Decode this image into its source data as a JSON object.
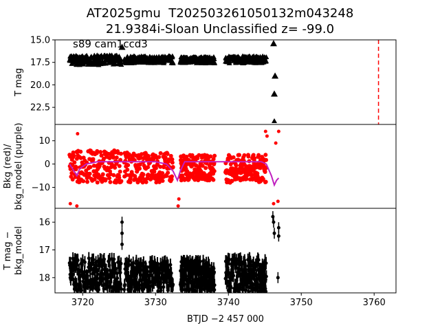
{
  "figure": {
    "title_line1": "AT2025gmu  T202503261050132m043248",
    "title_line2": "21.9384i-Sloan Unclassified z= -99.0"
  },
  "chart_data": [
    {
      "panel": "top",
      "type": "scatter",
      "annotation": "s89 cam1ccd3",
      "ylabel": "T mag",
      "yticks": [
        "15.0",
        "17.5",
        "20.0",
        "22.5"
      ],
      "ylim": [
        15.0,
        24.4
      ],
      "y_inverted": true,
      "xlim": [
        3716.2,
        3763.0
      ],
      "marker": "triangle",
      "series": [
        {
          "color": "#000000",
          "segments": [
            {
              "x_start": 3718.2,
              "x_end": 3725.3,
              "y_low": 16.7,
              "y_high": 17.8
            },
            {
              "x_start": 3725.7,
              "x_end": 3732.4,
              "y_low": 16.8,
              "y_high": 17.6
            },
            {
              "x_start": 3733.4,
              "x_end": 3738.1,
              "y_low": 16.9,
              "y_high": 17.6
            },
            {
              "x_start": 3739.6,
              "x_end": 3745.2,
              "y_low": 16.8,
              "y_high": 17.6
            }
          ],
          "spikes": [
            {
              "x": 3725.4,
              "y": 15.8
            },
            {
              "x": 3746.2,
              "y": 15.4
            },
            {
              "x": 3746.4,
              "y": 19.0
            },
            {
              "x": 3746.3,
              "y": 21.0
            }
          ]
        }
      ],
      "vline": {
        "x": 3760.6,
        "color": "#ff0000",
        "style": "dashed"
      },
      "off_scale_marker": {
        "x": 3746.3
      }
    },
    {
      "panel": "middle",
      "type": "scatter",
      "ylabel_line1": "Bkg (red)/",
      "ylabel_line2": "bkg_model (purple)",
      "yticks": [
        "10",
        "0",
        "−10"
      ],
      "ytick_values": [
        10,
        0,
        -10
      ],
      "ylim": [
        -19,
        17
      ],
      "xlim": [
        3716.2,
        3763.0
      ],
      "series": [
        {
          "name": "Bkg",
          "color": "#ff0000",
          "segments": [
            {
              "x_start": 3718.2,
              "x_end": 3725.3,
              "y_low": -8,
              "y_high": 6
            },
            {
              "x_start": 3725.7,
              "x_end": 3732.4,
              "y_low": -8,
              "y_high": 5
            },
            {
              "x_start": 3733.4,
              "x_end": 3738.1,
              "y_low": -7,
              "y_high": 4
            },
            {
              "x_start": 3739.6,
              "x_end": 3745.2,
              "y_low": -8,
              "y_high": 4
            }
          ],
          "extremes": [
            {
              "x": 3718.3,
              "y": -17
            },
            {
              "x": 3719.2,
              "y": -18
            },
            {
              "x": 3719.3,
              "y": 13
            },
            {
              "x": 3733.1,
              "y": -18
            },
            {
              "x": 3733.2,
              "y": -15
            },
            {
              "x": 3745.1,
              "y": 14
            },
            {
              "x": 3745.3,
              "y": 12
            },
            {
              "x": 3746.5,
              "y": 9
            },
            {
              "x": 3746.9,
              "y": 14
            },
            {
              "x": 3746.2,
              "y": -17
            },
            {
              "x": 3746.8,
              "y": -16
            }
          ]
        },
        {
          "name": "bkg_model",
          "color": "#c020c0",
          "x": [
            3718.2,
            3718.8,
            3719.2,
            3719.6,
            3720.5,
            3722.0,
            3724.0,
            3725.3,
            3725.7,
            3728.0,
            3730.0,
            3731.5,
            3732.4,
            3733.0,
            3733.4,
            3734.0,
            3736.0,
            3738.1,
            3739.6,
            3741.0,
            3743.0,
            3744.5,
            3745.2,
            3745.9,
            3746.3,
            3746.6,
            3746.9
          ],
          "y": [
            0,
            -3,
            -5,
            -2,
            0,
            1,
            1,
            1,
            1,
            1,
            1,
            0,
            -3,
            -7,
            -3,
            1,
            1,
            1,
            1,
            1,
            1,
            1,
            0,
            -5,
            -9,
            -7,
            -6
          ]
        }
      ]
    },
    {
      "panel": "bottom",
      "type": "scatter",
      "ylabel_line1": "T mag −",
      "ylabel_line2": "bkg_model",
      "yticks": [
        "16",
        "17",
        "18"
      ],
      "ytick_values": [
        16,
        17,
        18
      ],
      "ylim": [
        15.5,
        18.55
      ],
      "y_inverted": true,
      "xlim": [
        3716.2,
        3763.0
      ],
      "xlabel": "BTJD −2 457 000",
      "xticks": [
        "3720",
        "3730",
        "3740",
        "3750",
        "3760"
      ],
      "xtick_values": [
        3720,
        3730,
        3740,
        3750,
        3760
      ],
      "series": [
        {
          "color": "#000000",
          "segments": [
            {
              "x_start": 3718.2,
              "x_end": 3725.3,
              "y_low": 17.3,
              "y_high": 18.5
            },
            {
              "x_start": 3725.7,
              "x_end": 3732.4,
              "y_low": 17.4,
              "y_high": 18.5
            },
            {
              "x_start": 3733.4,
              "x_end": 3738.1,
              "y_low": 17.4,
              "y_high": 18.5
            },
            {
              "x_start": 3739.6,
              "x_end": 3745.2,
              "y_low": 17.3,
              "y_high": 18.5
            }
          ],
          "spikes": [
            {
              "x": 3725.4,
              "y": 16.0
            },
            {
              "x": 3725.4,
              "y": 16.4
            },
            {
              "x": 3725.4,
              "y": 16.8
            },
            {
              "x": 3746.1,
              "y": 15.8
            },
            {
              "x": 3746.2,
              "y": 16.0
            },
            {
              "x": 3746.3,
              "y": 16.4
            },
            {
              "x": 3746.9,
              "y": 16.2
            },
            {
              "x": 3746.9,
              "y": 16.5
            },
            {
              "x": 3746.8,
              "y": 18.0
            },
            {
              "x": 3718.3,
              "y": 18.0
            }
          ]
        }
      ]
    }
  ]
}
